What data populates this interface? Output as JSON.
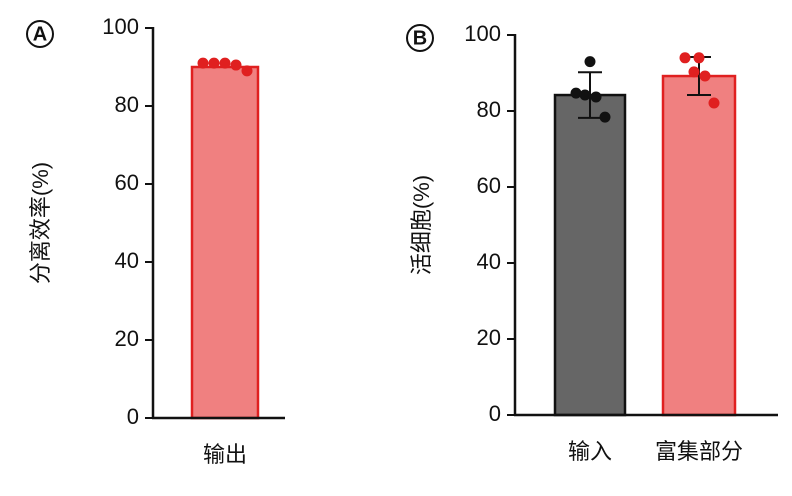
{
  "chart_data": [
    {
      "type": "bar",
      "panel_label": "A",
      "y_label": "分离效率(%)",
      "categories": [
        "输出"
      ],
      "values": [
        90
      ],
      "points": [
        [
          91,
          91,
          91,
          90.5,
          89
        ]
      ],
      "colors": [
        "#f08080"
      ],
      "edge_colors": [
        "#e02020"
      ],
      "ylim": [
        0,
        100
      ],
      "yticks": [
        0,
        20,
        40,
        60,
        80,
        100
      ]
    },
    {
      "type": "bar",
      "panel_label": "B",
      "y_label": "活细胞(%)",
      "categories": [
        "输入",
        "富集部分"
      ],
      "values": [
        84.2,
        89.2
      ],
      "errors": [
        6,
        5
      ],
      "points": [
        [
          93,
          84.7,
          84.2,
          83.7,
          78.4
        ],
        [
          94,
          94,
          90.3,
          89.2,
          82.1
        ]
      ],
      "colors": [
        "#666666",
        "#f08080"
      ],
      "edge_colors": [
        "#111111",
        "#e02020"
      ],
      "ylim": [
        0,
        100
      ],
      "yticks": [
        0,
        20,
        40,
        60,
        80,
        100
      ]
    }
  ]
}
